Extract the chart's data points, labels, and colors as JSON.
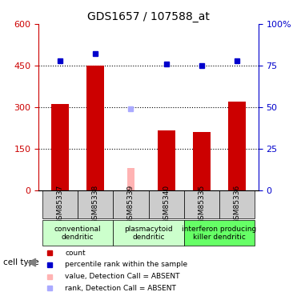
{
  "title": "GDS1657 / 107588_at",
  "samples": [
    "GSM85337",
    "GSM85338",
    "GSM85339",
    "GSM85340",
    "GSM85335",
    "GSM85336"
  ],
  "bar_values": [
    310,
    450,
    null,
    215,
    210,
    320
  ],
  "bar_absent_values": [
    null,
    null,
    80,
    null,
    null,
    null
  ],
  "bar_colors": [
    "#cc0000",
    "#cc0000",
    null,
    "#cc0000",
    "#cc0000",
    "#cc0000"
  ],
  "bar_absent_color": "#ffb3b3",
  "dot_values": [
    78,
    82,
    null,
    76,
    75,
    78
  ],
  "dot_absent_values": [
    null,
    null,
    49,
    null,
    null,
    null
  ],
  "dot_color": "#0000cc",
  "dot_absent_color": "#aaaaff",
  "ylim_left": [
    0,
    600
  ],
  "ylim_right": [
    0,
    100
  ],
  "yticks_left": [
    0,
    150,
    300,
    450,
    600
  ],
  "yticks_right": [
    0,
    25,
    50,
    75,
    100
  ],
  "ytick_labels_left": [
    "0",
    "150",
    "300",
    "450",
    "600"
  ],
  "ytick_labels_right": [
    "0",
    "25",
    "50",
    "75",
    "100%"
  ],
  "left_axis_color": "#cc0000",
  "right_axis_color": "#0000cc",
  "grid_dotted_values": [
    150,
    300,
    450
  ],
  "groups": [
    {
      "label": "conventional\ndendritic",
      "start": 0,
      "end": 2,
      "color": "#ccffcc"
    },
    {
      "label": "plasmacytoid\ndendritic",
      "start": 2,
      "end": 4,
      "color": "#ccffcc"
    },
    {
      "label": "interferon producing\nkiller dendritic",
      "start": 4,
      "end": 6,
      "color": "#66ff66"
    }
  ],
  "cell_type_label": "cell type",
  "legend_items": [
    {
      "color": "#cc0000",
      "label": "count",
      "marker": "s"
    },
    {
      "color": "#0000cc",
      "label": "percentile rank within the sample",
      "marker": "s"
    },
    {
      "color": "#ffb3b3",
      "label": "value, Detection Call = ABSENT",
      "marker": "s"
    },
    {
      "color": "#aaaaff",
      "label": "rank, Detection Call = ABSENT",
      "marker": "s"
    }
  ],
  "sample_bg_color": "#cccccc",
  "sample_bg_color2": "#dddddd"
}
